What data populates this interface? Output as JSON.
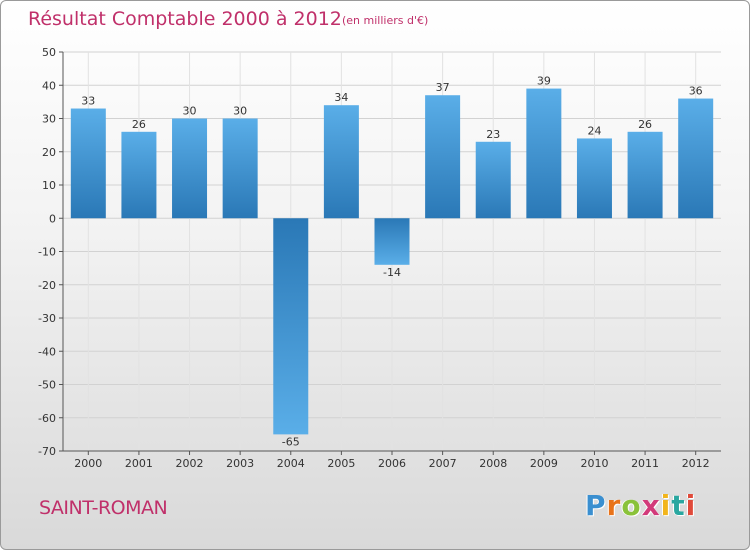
{
  "header": {
    "title": "Résultat Comptable 2000 à 2012",
    "subtitle": "(en milliers d'€)"
  },
  "footer": {
    "commune": "SAINT-ROMAN",
    "logo_text": "Proxiti"
  },
  "colors": {
    "title": "#c0306a",
    "bar_light": "#5aaee8",
    "bar_dark": "#2a78b6"
  },
  "chart_data": {
    "type": "bar",
    "title": "Résultat Comptable 2000 à 2012",
    "subtitle": "(en milliers d'€)",
    "categories": [
      "2000",
      "2001",
      "2002",
      "2003",
      "2004",
      "2005",
      "2006",
      "2007",
      "2008",
      "2009",
      "2010",
      "2011",
      "2012"
    ],
    "values": [
      33,
      26,
      30,
      30,
      -65,
      34,
      -14,
      37,
      23,
      39,
      24,
      26,
      36
    ],
    "data_labels": [
      "33",
      "26",
      "30",
      "30",
      "-65",
      "34",
      "-14",
      "37",
      "23",
      "39",
      "24",
      "26",
      "36"
    ],
    "ylim": [
      -70,
      50
    ],
    "yticks": [
      50,
      40,
      30,
      20,
      10,
      0,
      -10,
      -20,
      -30,
      -40,
      -50,
      -60,
      -70
    ],
    "grid": true
  }
}
